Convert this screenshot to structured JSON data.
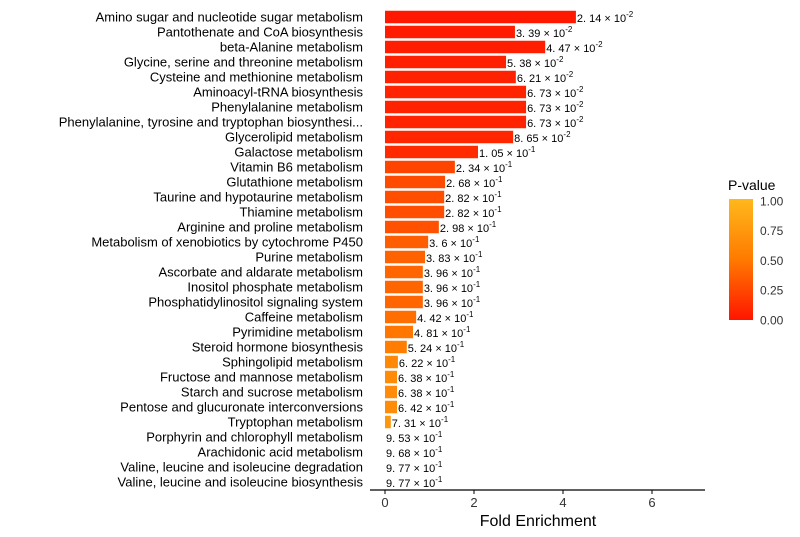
{
  "chart_data": {
    "type": "bar",
    "orientation": "horizontal",
    "xlabel": "Fold Enrichment",
    "ylabel": "",
    "xlim": [
      -0.35,
      7.2
    ],
    "xticks": [
      0,
      2,
      4,
      6
    ],
    "grid": false,
    "legend": {
      "title": "P-value",
      "placement": "right",
      "ticks": [
        "1.00",
        "0.75",
        "0.50",
        "0.25",
        "0.00"
      ],
      "min": 0,
      "max": 1
    },
    "colors": {
      "low": "#ff1500",
      "mid": "#ff7a00",
      "high": "#ffb81c"
    },
    "categories": [
      "Amino sugar and nucleotide sugar metabolism",
      "Pantothenate and CoA biosynthesis",
      "beta-Alanine metabolism",
      "Glycine, serine and threonine metabolism",
      "Cysteine and methionine metabolism",
      "Aminoacyl-tRNA biosynthesis",
      "Phenylalanine metabolism",
      "Phenylalanine, tyrosine and tryptophan biosynthesi...",
      "Glycerolipid metabolism",
      "Galactose metabolism",
      "Vitamin B6 metabolism",
      "Glutathione metabolism",
      "Taurine and hypotaurine metabolism",
      "Thiamine metabolism",
      "Arginine and proline metabolism",
      "Metabolism of xenobiotics by cytochrome P450",
      "Purine metabolism",
      "Ascorbate and aldarate metabolism",
      "Inositol phosphate metabolism",
      "Phosphatidylinositol signaling system",
      "Caffeine metabolism",
      "Pyrimidine metabolism",
      "Steroid hormone biosynthesis",
      "Sphingolipid metabolism",
      "Fructose and mannose metabolism",
      "Starch and sucrose metabolism",
      "Pentose and glucuronate interconversions",
      "Tryptophan metabolism",
      "Porphyrin and chlorophyll metabolism",
      "Arachidonic acid metabolism",
      "Valine, leucine and isoleucine degradation",
      "Valine, leucine and isoleucine biosynthesis"
    ],
    "values": [
      4.29,
      2.92,
      3.6,
      2.72,
      2.94,
      3.17,
      3.17,
      3.17,
      2.88,
      2.09,
      1.57,
      1.35,
      1.33,
      1.33,
      1.21,
      0.97,
      0.9,
      0.85,
      0.85,
      0.85,
      0.7,
      0.63,
      0.49,
      0.29,
      0.27,
      0.27,
      0.27,
      0.13,
      0,
      0,
      0,
      0
    ],
    "p_values": [
      0.0214,
      0.0339,
      0.0447,
      0.0538,
      0.0621,
      0.0673,
      0.0673,
      0.0673,
      0.0865,
      0.105,
      0.234,
      0.268,
      0.282,
      0.282,
      0.298,
      0.36,
      0.383,
      0.396,
      0.396,
      0.396,
      0.442,
      0.481,
      0.524,
      0.622,
      0.638,
      0.638,
      0.642,
      0.731,
      0.953,
      0.968,
      0.977,
      0.977
    ],
    "p_labels": [
      {
        "m": "2. 14",
        "e": "-2"
      },
      {
        "m": "3. 39",
        "e": "-2"
      },
      {
        "m": "4. 47",
        "e": "-2"
      },
      {
        "m": "5. 38",
        "e": "-2"
      },
      {
        "m": "6. 21",
        "e": "-2"
      },
      {
        "m": "6. 73",
        "e": "-2"
      },
      {
        "m": "6. 73",
        "e": "-2"
      },
      {
        "m": "6. 73",
        "e": "-2"
      },
      {
        "m": "8. 65",
        "e": "-2"
      },
      {
        "m": "1. 05",
        "e": "-1"
      },
      {
        "m": "2. 34",
        "e": "-1"
      },
      {
        "m": "2. 68",
        "e": "-1"
      },
      {
        "m": "2. 82",
        "e": "-1"
      },
      {
        "m": "2. 82",
        "e": "-1"
      },
      {
        "m": "2. 98",
        "e": "-1"
      },
      {
        "m": "3. 6",
        "e": "-1"
      },
      {
        "m": "3. 83",
        "e": "-1"
      },
      {
        "m": "3. 96",
        "e": "-1"
      },
      {
        "m": "3. 96",
        "e": "-1"
      },
      {
        "m": "3. 96",
        "e": "-1"
      },
      {
        "m": "4. 42",
        "e": "-1"
      },
      {
        "m": "4. 81",
        "e": "-1"
      },
      {
        "m": "5. 24",
        "e": "-1"
      },
      {
        "m": "6. 22",
        "e": "-1"
      },
      {
        "m": "6. 38",
        "e": "-1"
      },
      {
        "m": "6. 38",
        "e": "-1"
      },
      {
        "m": "6. 42",
        "e": "-1"
      },
      {
        "m": "7. 31",
        "e": "-1"
      },
      {
        "m": "9. 53",
        "e": "-1"
      },
      {
        "m": "9. 68",
        "e": "-1"
      },
      {
        "m": "9. 77",
        "e": "-1"
      },
      {
        "m": "9. 77",
        "e": "-1"
      }
    ],
    "p_label_times": "× 10"
  }
}
